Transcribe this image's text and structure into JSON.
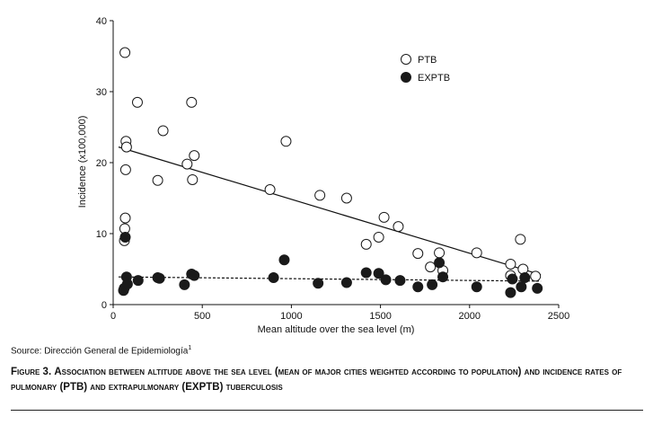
{
  "chart_data": {
    "type": "scatter",
    "xlabel": "Mean altitude over the sea level (m)",
    "ylabel": "Incidence (x100,000)",
    "xlim": [
      0,
      2500
    ],
    "ylim": [
      0,
      40
    ],
    "x_ticks": [
      "0",
      "500",
      "1000",
      "1500",
      "2000",
      "2500"
    ],
    "y_ticks": [
      "0",
      "10",
      "20",
      "30",
      "40"
    ],
    "x_tick_values": [
      0,
      500,
      1000,
      1500,
      2000,
      2500
    ],
    "y_tick_values": [
      0,
      10,
      20,
      30,
      40
    ],
    "grid": false,
    "legend_position": "top-right",
    "series": [
      {
        "name": "PTB",
        "marker": "open-circle",
        "trendline": "solid",
        "trend": [
          [
            30,
            22.2
          ],
          [
            2400,
            4.2
          ]
        ],
        "points": [
          [
            66,
            35.5
          ],
          [
            136,
            28.5
          ],
          [
            440,
            28.5
          ],
          [
            72,
            23
          ],
          [
            75,
            22.2
          ],
          [
            280,
            24.5
          ],
          [
            70,
            19
          ],
          [
            415,
            19.8
          ],
          [
            455,
            21
          ],
          [
            250,
            17.5
          ],
          [
            445,
            17.6
          ],
          [
            970,
            23
          ],
          [
            880,
            16.2
          ],
          [
            1160,
            15.4
          ],
          [
            1310,
            15
          ],
          [
            68,
            12.2
          ],
          [
            65,
            10.7
          ],
          [
            63,
            9
          ],
          [
            1520,
            12.3
          ],
          [
            1600,
            11
          ],
          [
            1420,
            8.5
          ],
          [
            1490,
            9.5
          ],
          [
            1710,
            7.2
          ],
          [
            1780,
            5.3
          ],
          [
            1830,
            7.3
          ],
          [
            1850,
            4.8
          ],
          [
            2040,
            7.3
          ],
          [
            2230,
            5.7
          ],
          [
            2285,
            9.2
          ],
          [
            2300,
            5
          ],
          [
            2370,
            4
          ],
          [
            2230,
            4.1
          ]
        ]
      },
      {
        "name": "EXPTB",
        "marker": "filled-circle",
        "trendline": "dashed",
        "trend": [
          [
            30,
            3.9
          ],
          [
            2400,
            3.3
          ]
        ],
        "points": [
          [
            68,
            9.5
          ],
          [
            75,
            3.9
          ],
          [
            140,
            3.4
          ],
          [
            250,
            3.8
          ],
          [
            260,
            3.7
          ],
          [
            400,
            2.8
          ],
          [
            440,
            4.3
          ],
          [
            455,
            4.1
          ],
          [
            900,
            3.8
          ],
          [
            960,
            6.3
          ],
          [
            1150,
            3
          ],
          [
            1310,
            3.1
          ],
          [
            1420,
            4.5
          ],
          [
            1490,
            4.4
          ],
          [
            1530,
            3.5
          ],
          [
            1610,
            3.4
          ],
          [
            1710,
            2.5
          ],
          [
            1790,
            2.8
          ],
          [
            1830,
            5.9
          ],
          [
            1850,
            3.9
          ],
          [
            2040,
            2.5
          ],
          [
            2230,
            1.7
          ],
          [
            2240,
            3.6
          ],
          [
            2290,
            2.5
          ],
          [
            2310,
            3.8
          ],
          [
            2380,
            2.3
          ],
          [
            58,
            2
          ],
          [
            62,
            2.3
          ],
          [
            80,
            2.9
          ]
        ]
      }
    ]
  },
  "source": {
    "text": "Source: Dirección General de Epidemiología",
    "note": "1"
  },
  "caption": {
    "figure_label": "Figure 3.",
    "text": "Association between altitude above the sea level (mean of major cities weighted according to population) and incidence rates of pulmonary (PTB) and extrapulmonary (EXPTB) tuberculosis"
  }
}
